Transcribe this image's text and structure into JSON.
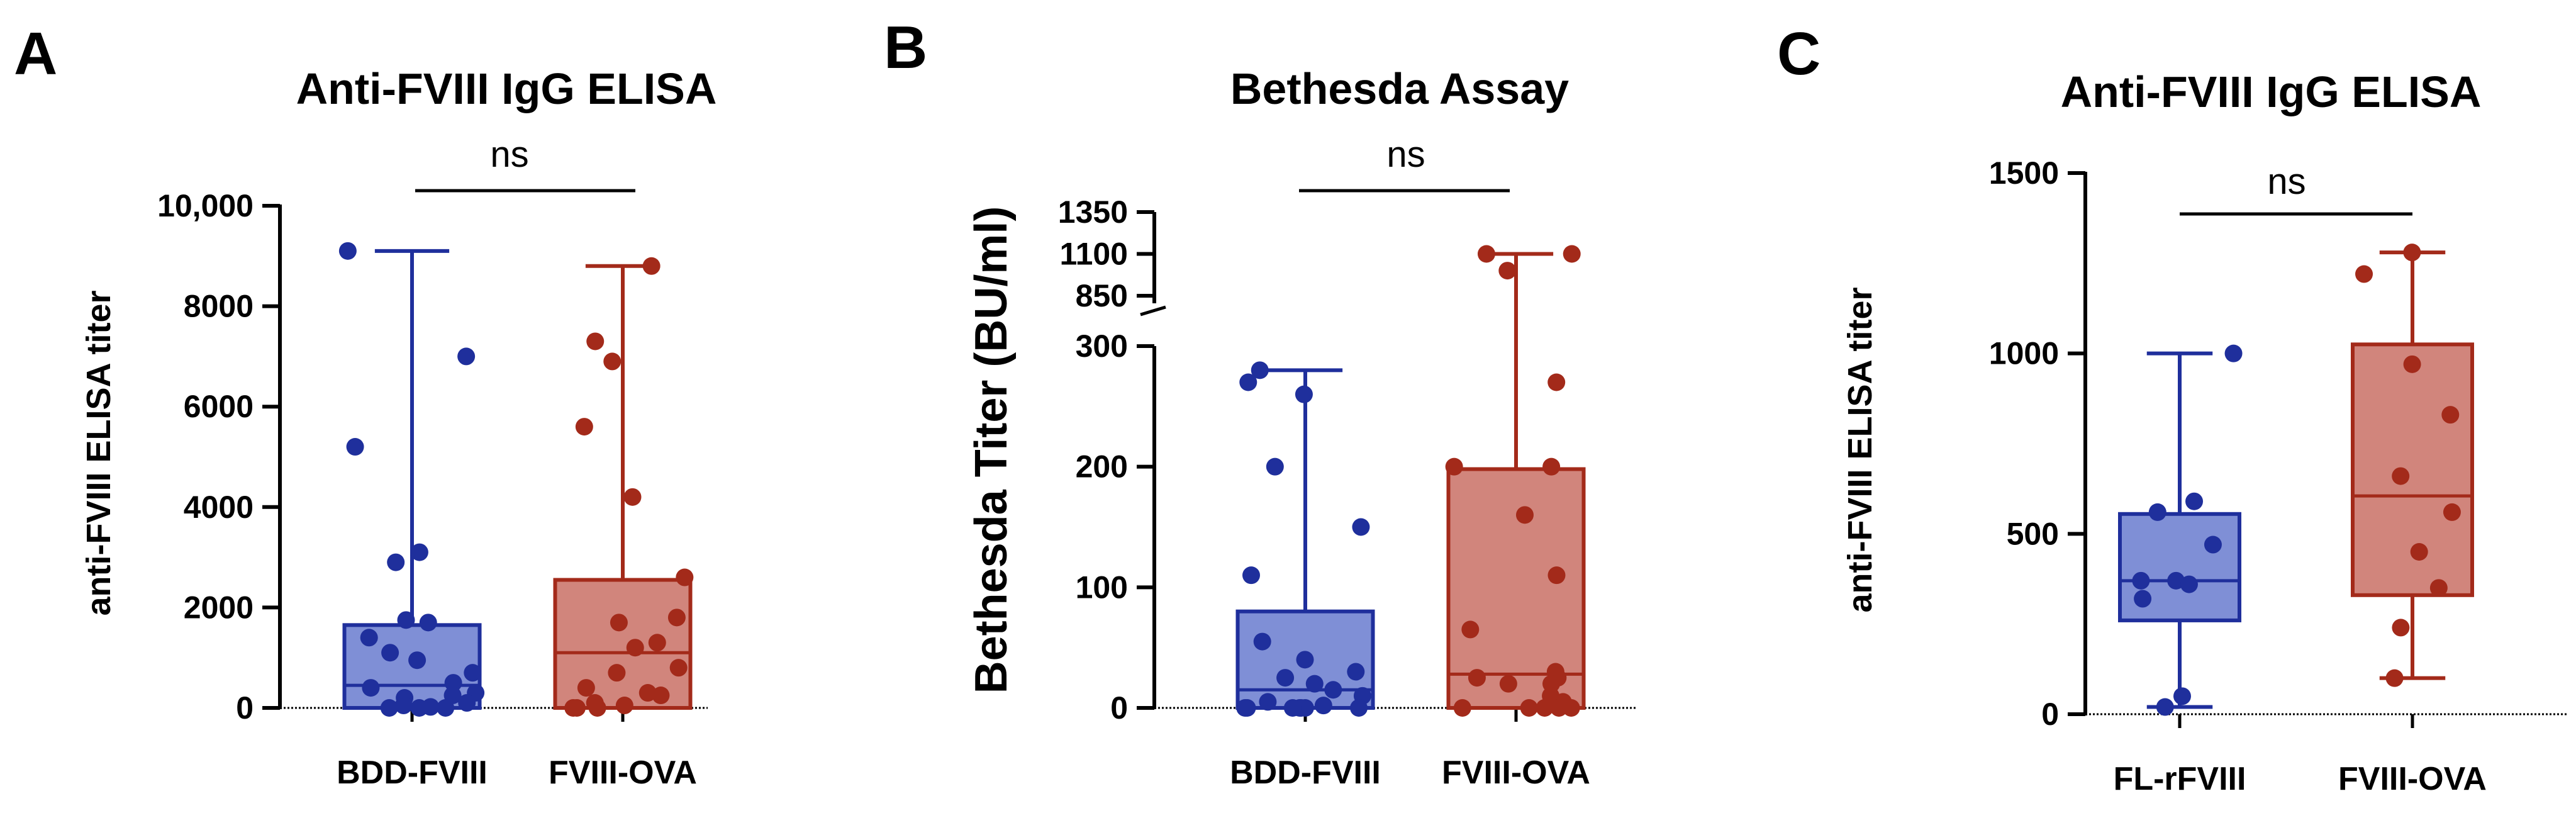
{
  "colors": {
    "blue_stroke": "#1f2f9c",
    "blue_fill": "#7f8fd6",
    "red_stroke": "#a32a1a",
    "red_fill": "#d1857c"
  },
  "chart_data": [
    {
      "panel": "A",
      "type": "box",
      "title": "Anti-FVIII IgG ELISA",
      "xlabel": "",
      "ylabel": "anti-FVIII ELISA titer",
      "ylim": [
        0,
        10000
      ],
      "yticks": [
        0,
        2000,
        4000,
        6000,
        8000,
        10000
      ],
      "ytick_labels": [
        "0",
        "2000",
        "4000",
        "6000",
        "8000",
        "10,000"
      ],
      "categories": [
        "BDD-FVIII",
        "FVIII-OVA"
      ],
      "significance": "ns",
      "series": [
        {
          "name": "BDD-FVIII",
          "color": "blue",
          "box": {
            "min": 0,
            "q1": 0,
            "median": 450,
            "q3": 1650,
            "max": 9100
          },
          "points": [
            9100,
            7000,
            5200,
            3100,
            2900,
            1750,
            1700,
            1400,
            1100,
            950,
            700,
            500,
            400,
            300,
            250,
            200,
            100,
            50,
            20,
            0,
            0,
            0
          ]
        },
        {
          "name": "FVIII-OVA",
          "color": "red",
          "box": {
            "min": 0,
            "q1": 0,
            "median": 1100,
            "q3": 2550,
            "max": 8800
          },
          "points": [
            8800,
            7300,
            6900,
            5600,
            4200,
            2600,
            1800,
            1700,
            1300,
            1200,
            800,
            700,
            400,
            300,
            250,
            100,
            50,
            0,
            0,
            0
          ]
        }
      ]
    },
    {
      "panel": "B",
      "type": "box",
      "title": "Bethesda Assay",
      "xlabel": "",
      "ylabel": "Bethesda Titer (BU/ml)",
      "ylim": [
        0,
        1350
      ],
      "axis_break": [
        300,
        850
      ],
      "yticks_lower": [
        0,
        100,
        200,
        300
      ],
      "yticks_upper": [
        850,
        1100,
        1350
      ],
      "categories": [
        "BDD-FVIII",
        "FVIII-OVA"
      ],
      "significance": "ns",
      "series": [
        {
          "name": "BDD-FVIII",
          "color": "blue",
          "box": {
            "min": 0,
            "q1": 0,
            "median": 15,
            "q3": 80,
            "max": 280
          },
          "points": [
            280,
            270,
            260,
            200,
            150,
            110,
            55,
            40,
            30,
            25,
            20,
            15,
            10,
            5,
            2,
            0,
            0,
            0,
            0,
            0,
            0,
            0
          ]
        },
        {
          "name": "FVIII-OVA",
          "color": "red",
          "box": {
            "min": 0,
            "q1": 0,
            "median": 28,
            "q3": 198,
            "max": 1100
          },
          "points": [
            1100,
            1100,
            1000,
            270,
            200,
            200,
            160,
            110,
            65,
            30,
            25,
            25,
            20,
            20,
            10,
            5,
            0,
            0,
            0,
            0,
            0
          ]
        }
      ]
    },
    {
      "panel": "C",
      "type": "box",
      "title": "Anti-FVIII IgG ELISA",
      "xlabel": "",
      "ylabel": "anti-FVIII ELISA titer",
      "ylim": [
        0,
        1500
      ],
      "yticks": [
        0,
        500,
        1000,
        1500
      ],
      "ytick_labels": [
        "0",
        "500",
        "1000",
        "1500"
      ],
      "categories": [
        "FL-rFVIII",
        "FVIII-OVA"
      ],
      "significance": "ns",
      "series": [
        {
          "name": "FL-rFVIII",
          "color": "blue",
          "box": {
            "min": 20,
            "q1": 260,
            "median": 370,
            "q3": 555,
            "max": 1000
          },
          "points": [
            1000,
            590,
            560,
            470,
            370,
            370,
            360,
            320,
            50,
            20
          ]
        },
        {
          "name": "FVIII-OVA",
          "color": "red",
          "box": {
            "min": 100,
            "q1": 330,
            "median": 605,
            "q3": 1025,
            "max": 1280
          },
          "points": [
            1280,
            1220,
            970,
            830,
            660,
            560,
            450,
            350,
            240,
            100
          ]
        }
      ]
    }
  ]
}
